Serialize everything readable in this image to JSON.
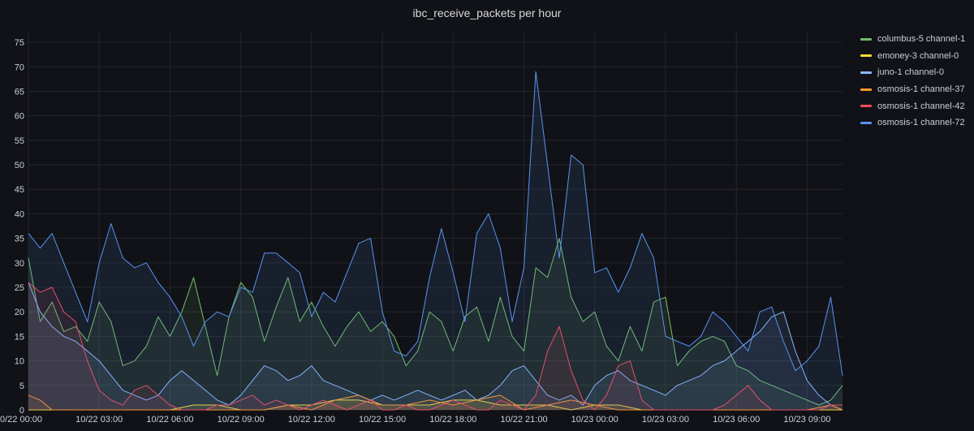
{
  "chart_data": {
    "type": "area",
    "title": "ibc_receive_packets per hour",
    "xlabel": "",
    "ylabel": "",
    "ylim": [
      0,
      77
    ],
    "y_ticks": [
      0,
      5,
      10,
      15,
      20,
      25,
      30,
      35,
      40,
      45,
      50,
      55,
      60,
      65,
      70,
      75
    ],
    "x_ticks": [
      "0/22 00:00",
      "10/22 03:00",
      "10/22 06:00",
      "10/22 09:00",
      "10/22 12:00",
      "10/22 15:00",
      "10/22 18:00",
      "10/22 21:00",
      "10/23 00:00",
      "10/23 03:00",
      "10/23 06:00",
      "10/23 09:00"
    ],
    "x_range_hours": [
      0,
      34.5
    ],
    "grid": true,
    "legend_position": "right",
    "series": [
      {
        "name": "columbus-5 channel-1",
        "color": "#73bf69",
        "x": [
          0,
          0.5,
          1,
          1.5,
          2,
          2.5,
          3,
          3.5,
          4,
          4.5,
          5,
          5.5,
          6,
          6.5,
          7,
          7.5,
          8,
          8.5,
          9,
          9.5,
          10,
          10.5,
          11,
          11.5,
          12,
          12.5,
          13,
          13.5,
          14,
          14.5,
          15,
          15.5,
          16,
          16.5,
          17,
          17.5,
          18,
          18.5,
          19,
          19.5,
          20,
          20.5,
          21,
          21.5,
          22,
          22.5,
          23,
          23.5,
          24,
          24.5,
          25,
          25.5,
          26,
          26.5,
          27,
          27.5,
          28,
          28.5,
          29,
          29.5,
          30,
          30.5,
          31,
          31.5,
          32,
          32.5,
          33,
          33.5,
          34,
          34.5
        ],
        "values": [
          31,
          18,
          22,
          16,
          17,
          14,
          22,
          18,
          9,
          10,
          13,
          19,
          15,
          20,
          27,
          17,
          7,
          19,
          26,
          23,
          14,
          21,
          27,
          18,
          22,
          17,
          13,
          17,
          20,
          16,
          18,
          15,
          9,
          12,
          20,
          18,
          12,
          19,
          21,
          14,
          23,
          15,
          12,
          29,
          27,
          35,
          23,
          18,
          20,
          13,
          10,
          17,
          12,
          22,
          23,
          9,
          12,
          14,
          15,
          14,
          9,
          8,
          6,
          5,
          4,
          3,
          2,
          1,
          2,
          5
        ]
      },
      {
        "name": "emoney-3 channel-0",
        "color": "#fade2a",
        "x": [
          0,
          1,
          2,
          3,
          4,
          5,
          6,
          7,
          8,
          9,
          10,
          11,
          12,
          13,
          14,
          15,
          16,
          17,
          18,
          19,
          20,
          21,
          22,
          23,
          24,
          25,
          26,
          27,
          28,
          29,
          30,
          31,
          32,
          33,
          34,
          34.5
        ],
        "values": [
          0,
          0,
          0,
          0,
          0,
          0,
          0,
          1,
          1,
          0,
          0,
          1,
          1,
          2,
          2,
          1,
          1,
          1,
          2,
          2,
          1,
          1,
          1,
          0,
          1,
          1,
          0,
          0,
          0,
          0,
          0,
          0,
          0,
          0,
          0,
          0
        ]
      },
      {
        "name": "juno-1 channel-0",
        "color": "#8ab8ff",
        "x": [
          0,
          0.5,
          1,
          1.5,
          2,
          2.5,
          3,
          3.5,
          4,
          4.5,
          5,
          5.5,
          6,
          6.5,
          7,
          7.5,
          8,
          8.5,
          9,
          9.5,
          10,
          10.5,
          11,
          11.5,
          12,
          12.5,
          13,
          13.5,
          14,
          14.5,
          15,
          15.5,
          16,
          16.5,
          17,
          17.5,
          18,
          18.5,
          19,
          19.5,
          20,
          20.5,
          21,
          21.5,
          22,
          22.5,
          23,
          23.5,
          24,
          24.5,
          25,
          25.5,
          26,
          26.5,
          27,
          27.5,
          28,
          28.5,
          29,
          29.5,
          30,
          30.5,
          31,
          31.5,
          32,
          32.5,
          33,
          33.5,
          34,
          34.5
        ],
        "values": [
          26,
          20,
          17,
          15,
          14,
          12,
          10,
          7,
          4,
          3,
          2,
          3,
          6,
          8,
          6,
          4,
          2,
          1,
          3,
          6,
          9,
          8,
          6,
          7,
          9,
          6,
          5,
          4,
          3,
          2,
          3,
          2,
          3,
          4,
          3,
          2,
          3,
          4,
          2,
          3,
          5,
          8,
          9,
          6,
          3,
          2,
          3,
          1,
          5,
          7,
          8,
          6,
          5,
          4,
          3,
          5,
          6,
          7,
          9,
          10,
          12,
          14,
          16,
          19,
          20,
          12,
          6,
          3,
          1,
          0
        ]
      },
      {
        "name": "osmosis-1 channel-37",
        "color": "#ff9830",
        "x": [
          0,
          0.5,
          1,
          1.5,
          2,
          3,
          4,
          5,
          6,
          7,
          8,
          9,
          10,
          11,
          12,
          13,
          14,
          15,
          16,
          17,
          18,
          19,
          20,
          21,
          22,
          23,
          24,
          25,
          26,
          27,
          28,
          29,
          30,
          31,
          32,
          33,
          34,
          34.5
        ],
        "values": [
          3,
          2,
          0,
          0,
          0,
          0,
          0,
          0,
          0,
          0,
          0,
          0,
          0,
          1,
          0,
          2,
          3,
          1,
          1,
          2,
          1,
          2,
          3,
          0,
          1,
          2,
          1,
          0,
          0,
          0,
          0,
          0,
          0,
          0,
          0,
          0,
          1,
          0
        ]
      },
      {
        "name": "osmosis-1 channel-42",
        "color": "#f2495c",
        "x": [
          0,
          0.5,
          1,
          1.5,
          2,
          2.5,
          3,
          3.5,
          4,
          4.5,
          5,
          5.5,
          6,
          6.5,
          7,
          7.5,
          8,
          8.5,
          9,
          9.5,
          10,
          10.5,
          11,
          11.5,
          12,
          12.5,
          13,
          13.5,
          14,
          14.5,
          15,
          15.5,
          16,
          16.5,
          17,
          17.5,
          18,
          18.5,
          19,
          19.5,
          20,
          20.5,
          21,
          21.5,
          22,
          22.5,
          23,
          23.5,
          24,
          24.5,
          25,
          25.5,
          26,
          26.5,
          27,
          27.5,
          28,
          28.5,
          29,
          29.5,
          30,
          30.5,
          31,
          31.5,
          32,
          32.5,
          33,
          33.5,
          34,
          34.5
        ],
        "values": [
          26,
          24,
          25,
          20,
          18,
          10,
          4,
          2,
          1,
          4,
          5,
          3,
          1,
          0,
          0,
          0,
          1,
          1,
          2,
          3,
          1,
          2,
          1,
          0,
          1,
          2,
          1,
          0,
          1,
          2,
          0,
          0,
          1,
          0,
          0,
          1,
          2,
          1,
          0,
          0,
          2,
          1,
          0,
          3,
          12,
          17,
          8,
          2,
          0,
          3,
          9,
          10,
          2,
          0,
          0,
          0,
          0,
          0,
          0,
          1,
          3,
          5,
          2,
          0,
          0,
          0,
          0,
          0,
          1,
          1
        ]
      },
      {
        "name": "osmosis-1 channel-72",
        "color": "#5794f2",
        "x": [
          0,
          0.5,
          1,
          1.5,
          2,
          2.5,
          3,
          3.5,
          4,
          4.5,
          5,
          5.5,
          6,
          6.5,
          7,
          7.5,
          8,
          8.5,
          9,
          9.5,
          10,
          10.5,
          11,
          11.5,
          12,
          12.5,
          13,
          13.5,
          14,
          14.5,
          15,
          15.5,
          16,
          16.5,
          17,
          17.5,
          18,
          18.5,
          19,
          19.5,
          20,
          20.5,
          21,
          21.5,
          22,
          22.5,
          23,
          23.5,
          24,
          24.5,
          25,
          25.5,
          26,
          26.5,
          27,
          27.5,
          28,
          28.5,
          29,
          29.5,
          30,
          30.5,
          31,
          31.5,
          32,
          32.5,
          33,
          33.5,
          34,
          34.5
        ],
        "values": [
          36,
          33,
          36,
          30,
          24,
          18,
          30,
          38,
          31,
          29,
          30,
          26,
          23,
          19,
          13,
          18,
          20,
          19,
          25,
          24,
          32,
          32,
          30,
          28,
          19,
          24,
          22,
          28,
          34,
          35,
          20,
          12,
          11,
          14,
          27,
          37,
          28,
          18,
          36,
          40,
          33,
          18,
          29,
          69,
          50,
          31,
          52,
          50,
          28,
          29,
          24,
          29,
          36,
          31,
          15,
          14,
          13,
          15,
          20,
          18,
          15,
          12,
          20,
          21,
          14,
          8,
          10,
          13,
          23,
          7
        ]
      }
    ]
  }
}
